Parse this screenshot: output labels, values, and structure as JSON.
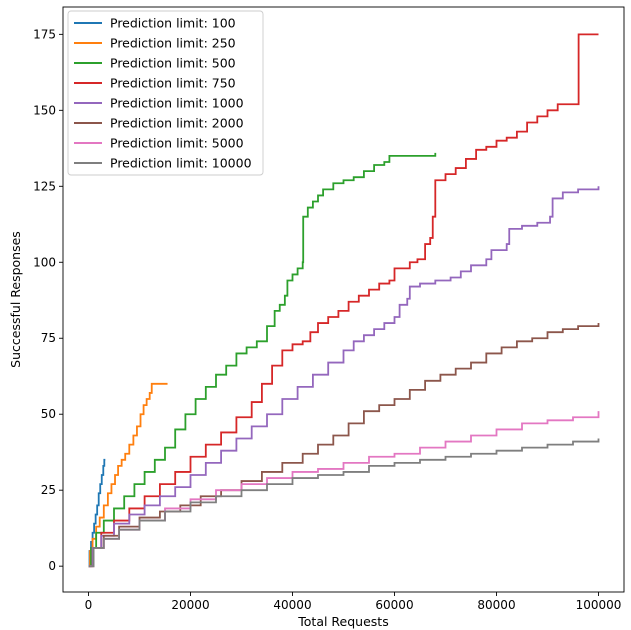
{
  "chart_data": {
    "type": "line",
    "title": "",
    "xlabel": "Total Requests",
    "ylabel": "Successful Responses",
    "xlim": [
      -5000,
      105000
    ],
    "ylim": [
      -8.5,
      184
    ],
    "xticks": [
      0,
      20000,
      40000,
      60000,
      80000,
      100000
    ],
    "xtick_labels": [
      "0",
      "20000",
      "40000",
      "60000",
      "80000",
      "100000"
    ],
    "yticks": [
      0,
      25,
      50,
      75,
      100,
      125,
      150,
      175
    ],
    "ytick_labels": [
      "0",
      "25",
      "50",
      "75",
      "100",
      "125",
      "150",
      "175"
    ],
    "grid": false,
    "legend_position": "top-left",
    "series": [
      {
        "name": "Prediction limit: 100",
        "color": "#1f77b4",
        "points": [
          [
            0,
            0
          ],
          [
            200,
            5
          ],
          [
            500,
            8
          ],
          [
            800,
            11
          ],
          [
            1100,
            14
          ],
          [
            1400,
            17
          ],
          [
            1700,
            20
          ],
          [
            2000,
            24
          ],
          [
            2300,
            27
          ],
          [
            2600,
            30
          ],
          [
            2900,
            33
          ],
          [
            3100,
            35
          ],
          [
            3300,
            35
          ]
        ]
      },
      {
        "name": "Prediction limit: 250",
        "color": "#ff7f0e",
        "points": [
          [
            0,
            0
          ],
          [
            300,
            5
          ],
          [
            800,
            9
          ],
          [
            1500,
            13
          ],
          [
            2200,
            16
          ],
          [
            3000,
            20
          ],
          [
            3800,
            24
          ],
          [
            4500,
            27
          ],
          [
            5200,
            30
          ],
          [
            5800,
            33
          ],
          [
            6500,
            35
          ],
          [
            7200,
            37
          ],
          [
            8000,
            40
          ],
          [
            8800,
            43
          ],
          [
            9500,
            46
          ],
          [
            10200,
            50
          ],
          [
            10800,
            53
          ],
          [
            11400,
            55
          ],
          [
            12000,
            57
          ],
          [
            12400,
            60
          ],
          [
            13500,
            60
          ],
          [
            15500,
            60
          ]
        ]
      },
      {
        "name": "Prediction limit: 500",
        "color": "#2ca02c",
        "points": [
          [
            0,
            0
          ],
          [
            500,
            6
          ],
          [
            1500,
            11
          ],
          [
            3000,
            15
          ],
          [
            5000,
            19
          ],
          [
            7000,
            23
          ],
          [
            9000,
            27
          ],
          [
            11000,
            31
          ],
          [
            13000,
            35
          ],
          [
            15000,
            39
          ],
          [
            17000,
            45
          ],
          [
            19000,
            50
          ],
          [
            21000,
            55
          ],
          [
            23000,
            59
          ],
          [
            25000,
            63
          ],
          [
            27000,
            66
          ],
          [
            29000,
            70
          ],
          [
            31000,
            72
          ],
          [
            33000,
            74
          ],
          [
            35000,
            79
          ],
          [
            36500,
            84
          ],
          [
            37500,
            86
          ],
          [
            38500,
            89
          ],
          [
            39000,
            94
          ],
          [
            40000,
            96
          ],
          [
            41000,
            98
          ],
          [
            42000,
            100
          ],
          [
            42100,
            115
          ],
          [
            43000,
            118
          ],
          [
            44000,
            120
          ],
          [
            45000,
            122
          ],
          [
            46000,
            124
          ],
          [
            48000,
            126
          ],
          [
            50000,
            127
          ],
          [
            52000,
            128
          ],
          [
            54000,
            130
          ],
          [
            56000,
            132
          ],
          [
            58000,
            133
          ],
          [
            59000,
            135
          ],
          [
            62000,
            135
          ],
          [
            65000,
            135
          ],
          [
            68000,
            136
          ]
        ]
      },
      {
        "name": "Prediction limit: 750",
        "color": "#d62728",
        "points": [
          [
            0,
            0
          ],
          [
            800,
            6
          ],
          [
            2500,
            11
          ],
          [
            5000,
            15
          ],
          [
            8000,
            19
          ],
          [
            11000,
            23
          ],
          [
            14000,
            27
          ],
          [
            17000,
            31
          ],
          [
            20000,
            36
          ],
          [
            23000,
            40
          ],
          [
            26000,
            44
          ],
          [
            29000,
            49
          ],
          [
            32000,
            54
          ],
          [
            34000,
            60
          ],
          [
            36000,
            66
          ],
          [
            38000,
            71
          ],
          [
            40000,
            73
          ],
          [
            42000,
            74
          ],
          [
            43500,
            77
          ],
          [
            45000,
            80
          ],
          [
            47000,
            82
          ],
          [
            49000,
            84
          ],
          [
            51000,
            87
          ],
          [
            53000,
            89
          ],
          [
            55000,
            91
          ],
          [
            57000,
            93
          ],
          [
            59000,
            94
          ],
          [
            60000,
            98
          ],
          [
            63000,
            100
          ],
          [
            64500,
            101
          ],
          [
            66000,
            106
          ],
          [
            67000,
            108
          ],
          [
            67500,
            115
          ],
          [
            68000,
            127
          ],
          [
            70000,
            129
          ],
          [
            72000,
            131
          ],
          [
            74000,
            134
          ],
          [
            76000,
            137
          ],
          [
            78000,
            138
          ],
          [
            80000,
            140
          ],
          [
            82000,
            141
          ],
          [
            84000,
            143
          ],
          [
            86000,
            146
          ],
          [
            88000,
            148
          ],
          [
            90000,
            150
          ],
          [
            92000,
            152
          ],
          [
            96000,
            152
          ],
          [
            96100,
            175
          ],
          [
            100000,
            175
          ]
        ]
      },
      {
        "name": "Prediction limit: 1000",
        "color": "#9467bd",
        "points": [
          [
            0,
            0
          ],
          [
            800,
            6
          ],
          [
            2500,
            10
          ],
          [
            5000,
            14
          ],
          [
            8000,
            17
          ],
          [
            11000,
            20
          ],
          [
            14000,
            23
          ],
          [
            17000,
            26
          ],
          [
            20000,
            30
          ],
          [
            23000,
            34
          ],
          [
            26000,
            38
          ],
          [
            29000,
            42
          ],
          [
            32000,
            46
          ],
          [
            35000,
            50
          ],
          [
            38000,
            55
          ],
          [
            41000,
            59
          ],
          [
            44000,
            63
          ],
          [
            47000,
            67
          ],
          [
            50000,
            71
          ],
          [
            52000,
            74
          ],
          [
            54000,
            76
          ],
          [
            56000,
            78
          ],
          [
            58000,
            80
          ],
          [
            60000,
            82
          ],
          [
            61000,
            86
          ],
          [
            62500,
            88
          ],
          [
            63000,
            92
          ],
          [
            65000,
            93
          ],
          [
            68000,
            94
          ],
          [
            71000,
            95
          ],
          [
            73000,
            97
          ],
          [
            75000,
            99
          ],
          [
            78000,
            101
          ],
          [
            79000,
            104
          ],
          [
            82000,
            106
          ],
          [
            82500,
            111
          ],
          [
            85000,
            112
          ],
          [
            88000,
            113
          ],
          [
            90500,
            115
          ],
          [
            91000,
            121
          ],
          [
            93000,
            123
          ],
          [
            96000,
            124
          ],
          [
            100000,
            125
          ]
        ]
      },
      {
        "name": "Prediction limit: 2000",
        "color": "#8c564b",
        "points": [
          [
            0,
            0
          ],
          [
            1000,
            6
          ],
          [
            3000,
            10
          ],
          [
            6000,
            13
          ],
          [
            10000,
            16
          ],
          [
            14000,
            18
          ],
          [
            18000,
            20
          ],
          [
            22000,
            23
          ],
          [
            26000,
            25
          ],
          [
            30000,
            28
          ],
          [
            34000,
            31
          ],
          [
            38000,
            34
          ],
          [
            42000,
            37
          ],
          [
            45000,
            40
          ],
          [
            48000,
            43
          ],
          [
            51000,
            47
          ],
          [
            54000,
            51
          ],
          [
            57000,
            53
          ],
          [
            60000,
            55
          ],
          [
            63000,
            58
          ],
          [
            66000,
            61
          ],
          [
            69000,
            63
          ],
          [
            72000,
            65
          ],
          [
            75000,
            67
          ],
          [
            78000,
            70
          ],
          [
            81000,
            72
          ],
          [
            84000,
            74
          ],
          [
            87000,
            75
          ],
          [
            90000,
            77
          ],
          [
            93000,
            78
          ],
          [
            96000,
            79
          ],
          [
            100000,
            80
          ]
        ]
      },
      {
        "name": "Prediction limit: 5000",
        "color": "#e377c2",
        "points": [
          [
            0,
            0
          ],
          [
            1000,
            6
          ],
          [
            3000,
            9
          ],
          [
            6000,
            12
          ],
          [
            10000,
            15
          ],
          [
            15000,
            19
          ],
          [
            20000,
            22
          ],
          [
            25000,
            25
          ],
          [
            30000,
            27
          ],
          [
            35000,
            29
          ],
          [
            40000,
            31
          ],
          [
            45000,
            32
          ],
          [
            50000,
            34
          ],
          [
            55000,
            36
          ],
          [
            60000,
            37
          ],
          [
            65000,
            39
          ],
          [
            70000,
            41
          ],
          [
            75000,
            43
          ],
          [
            80000,
            45
          ],
          [
            85000,
            47
          ],
          [
            90000,
            48
          ],
          [
            95000,
            49
          ],
          [
            100000,
            51
          ]
        ]
      },
      {
        "name": "Prediction limit: 10000",
        "color": "#7f7f7f",
        "points": [
          [
            0,
            0
          ],
          [
            1000,
            6
          ],
          [
            3000,
            9
          ],
          [
            6000,
            12
          ],
          [
            10000,
            15
          ],
          [
            15000,
            18
          ],
          [
            20000,
            21
          ],
          [
            25000,
            23
          ],
          [
            30000,
            25
          ],
          [
            35000,
            27
          ],
          [
            40000,
            29
          ],
          [
            45000,
            30
          ],
          [
            50000,
            31
          ],
          [
            55000,
            33
          ],
          [
            60000,
            34
          ],
          [
            65000,
            35
          ],
          [
            70000,
            36
          ],
          [
            75000,
            37
          ],
          [
            80000,
            38
          ],
          [
            85000,
            39
          ],
          [
            90000,
            40
          ],
          [
            95000,
            41
          ],
          [
            100000,
            42
          ]
        ]
      }
    ]
  }
}
